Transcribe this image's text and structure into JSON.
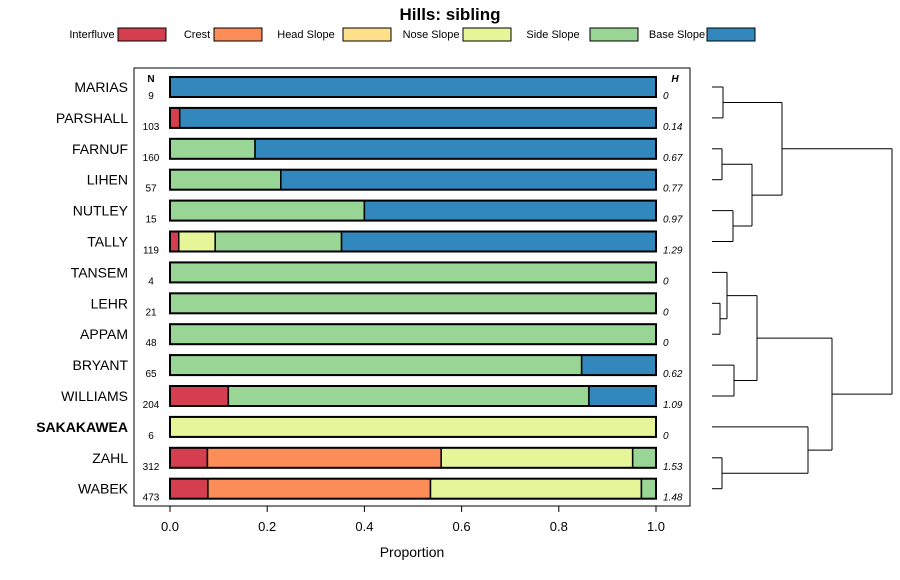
{
  "chart_data": {
    "type": "bar",
    "orientation": "horizontal",
    "stacked": true,
    "title": "Hills: sibling",
    "xlabel": "Proportion",
    "ylabel": "",
    "xlim": [
      0,
      1
    ],
    "xticks": [
      "0.0",
      "0.2",
      "0.4",
      "0.6",
      "0.8",
      "1.0"
    ],
    "col_header_n": "N",
    "col_header_h": "H",
    "legend": [
      {
        "name": "Interfluve",
        "color": "#d53e4f"
      },
      {
        "name": "Crest",
        "color": "#fc8d59"
      },
      {
        "name": "Head Slope",
        "color": "#fee08b"
      },
      {
        "name": "Nose Slope",
        "color": "#e6f598"
      },
      {
        "name": "Side Slope",
        "color": "#99d594"
      },
      {
        "name": "Base Slope",
        "color": "#3288bd"
      }
    ],
    "categories": [
      "MARIAS",
      "PARSHALL",
      "FARNUF",
      "LIHEN",
      "NUTLEY",
      "TALLY",
      "TANSEM",
      "LEHR",
      "APPAM",
      "BRYANT",
      "WILLIAMS",
      "SAKAKAWEA",
      "ZAHL",
      "WABEK"
    ],
    "bold_category": "SAKAKAWEA",
    "n": [
      "9",
      "103",
      "160",
      "57",
      "15",
      "119",
      "4",
      "21",
      "48",
      "65",
      "204",
      "6",
      "312",
      "473"
    ],
    "h": [
      "0",
      "0.14",
      "0.67",
      "0.77",
      "0.97",
      "1.29",
      "0",
      "0",
      "0",
      "0.62",
      "1.09",
      "0",
      "1.53",
      "1.48"
    ],
    "series": [
      {
        "name": "Interfluve",
        "values": [
          0,
          0.02,
          0,
          0,
          0,
          0.018,
          0,
          0,
          0,
          0,
          0.12,
          0,
          0.077,
          0.078
        ]
      },
      {
        "name": "Crest",
        "values": [
          0,
          0,
          0,
          0,
          0,
          0,
          0,
          0,
          0,
          0,
          0,
          0,
          0.481,
          0.458
        ]
      },
      {
        "name": "Head Slope",
        "values": [
          0,
          0,
          0,
          0,
          0,
          0,
          0,
          0,
          0,
          0,
          0,
          0,
          0,
          0
        ]
      },
      {
        "name": "Nose Slope",
        "values": [
          0,
          0,
          0,
          0,
          0,
          0.075,
          0,
          0,
          0,
          0,
          0,
          1.0,
          0.394,
          0.434
        ]
      },
      {
        "name": "Side Slope",
        "values": [
          0,
          0,
          0.175,
          0.228,
          0.4,
          0.26,
          1.0,
          1.0,
          1.0,
          0.847,
          0.742,
          0,
          0.048,
          0.03
        ]
      },
      {
        "name": "Base Slope",
        "values": [
          1.0,
          0.98,
          0.825,
          0.772,
          0.6,
          0.647,
          0,
          0,
          0,
          0.153,
          0.138,
          0,
          0,
          0
        ]
      }
    ],
    "dendrogram": "hierarchical clustering of rows (right side)"
  }
}
